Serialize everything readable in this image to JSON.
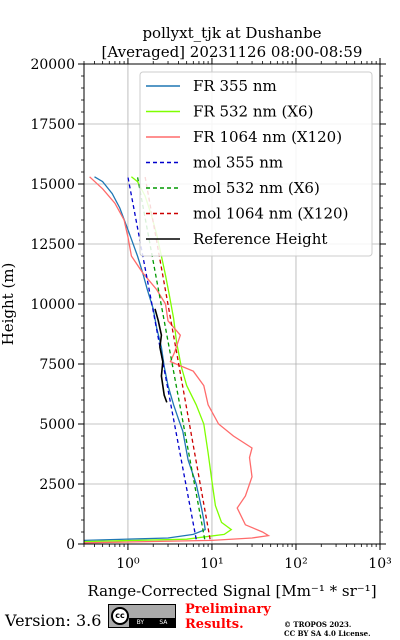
{
  "chart_data": {
    "type": "line",
    "title_line1": "pollyxt_tjk at Dushanbe",
    "title_line2": "[Averaged] 20231126 08:00-08:59",
    "xlabel": "Range-Corrected Signal [Mm⁻¹ * sr⁻¹]",
    "ylabel": "Height (m)",
    "x_scale": "log",
    "xlim": [
      0.3,
      1000
    ],
    "ylim": [
      0,
      20000
    ],
    "x_ticks": [
      1,
      10,
      100,
      1000
    ],
    "x_tick_labels": [
      "10⁰",
      "10¹",
      "10²",
      "10³"
    ],
    "y_ticks": [
      0,
      2500,
      5000,
      7500,
      10000,
      12500,
      15000,
      17500,
      20000
    ],
    "y_tick_labels": [
      "0",
      "2500",
      "5000",
      "7500",
      "10000",
      "12500",
      "15000",
      "17500",
      "20000"
    ],
    "grid": true,
    "legend_position": "top-right",
    "series": [
      {
        "name": "FR 355 nm",
        "color": "#1f77b4",
        "style": "solid",
        "points": [
          [
            0.3,
            150
          ],
          [
            3,
            250
          ],
          [
            6,
            400
          ],
          [
            8.3,
            600
          ],
          [
            8,
            1000
          ],
          [
            7.5,
            1500
          ],
          [
            6.5,
            2500
          ],
          [
            5.2,
            3500
          ],
          [
            4.5,
            4700
          ],
          [
            4.0,
            5200
          ],
          [
            3.5,
            5800
          ],
          [
            3.0,
            6600
          ],
          [
            2.7,
            7400
          ],
          [
            2.5,
            8200
          ],
          [
            2.2,
            9000
          ],
          [
            2.0,
            9800
          ],
          [
            1.7,
            10600
          ],
          [
            1.5,
            11300
          ],
          [
            1.3,
            12000
          ],
          [
            1.1,
            12700
          ],
          [
            0.95,
            13300
          ],
          [
            0.8,
            14000
          ],
          [
            0.65,
            14600
          ],
          [
            0.5,
            15100
          ],
          [
            0.4,
            15300
          ]
        ]
      },
      {
        "name": "FR 532 nm (X6)",
        "color": "#7fff00",
        "style": "solid",
        "points": [
          [
            0.3,
            100
          ],
          [
            5,
            200
          ],
          [
            14,
            400
          ],
          [
            17,
            600
          ],
          [
            13,
            900
          ],
          [
            11,
            1600
          ],
          [
            10,
            2600
          ],
          [
            9,
            3800
          ],
          [
            8,
            5000
          ],
          [
            6.5,
            5800
          ],
          [
            5,
            6600
          ],
          [
            4.3,
            7400
          ],
          [
            3.8,
            8400
          ],
          [
            3.5,
            9400
          ],
          [
            3.1,
            10400
          ],
          [
            2.8,
            11200
          ],
          [
            2.5,
            12000
          ],
          [
            2.2,
            12900
          ],
          [
            1.9,
            13700
          ],
          [
            1.6,
            14500
          ],
          [
            1.3,
            15100
          ],
          [
            1.1,
            15300
          ]
        ]
      },
      {
        "name": "FR 1064 nm (X120)",
        "color": "#ff6b6b",
        "style": "solid",
        "points": [
          [
            0.3,
            50
          ],
          [
            10,
            150
          ],
          [
            30,
            250
          ],
          [
            47,
            350
          ],
          [
            40,
            500
          ],
          [
            25,
            800
          ],
          [
            20,
            1500
          ],
          [
            25,
            2000
          ],
          [
            30,
            2800
          ],
          [
            28,
            3600
          ],
          [
            30,
            4000
          ],
          [
            18,
            4500
          ],
          [
            12,
            5000
          ],
          [
            9,
            5800
          ],
          [
            8,
            6600
          ],
          [
            6,
            7200
          ],
          [
            3.2,
            7600
          ],
          [
            3.6,
            8000
          ],
          [
            4.2,
            8700
          ],
          [
            3.0,
            9300
          ],
          [
            2.8,
            10000
          ],
          [
            2.2,
            10600
          ],
          [
            1.5,
            11300
          ],
          [
            1.1,
            12000
          ],
          [
            1.0,
            12800
          ],
          [
            0.9,
            13500
          ],
          [
            0.7,
            14200
          ],
          [
            0.5,
            14800
          ],
          [
            0.35,
            15300
          ]
        ]
      },
      {
        "name": "mol 355 nm",
        "color": "#0000cc",
        "style": "dashed",
        "points": [
          [
            6.5,
            200
          ],
          [
            1.0,
            15300
          ]
        ]
      },
      {
        "name": "mol 532 nm (X6)",
        "color": "#009900",
        "style": "dashed",
        "points": [
          [
            8.2,
            200
          ],
          [
            1.3,
            15300
          ]
        ]
      },
      {
        "name": "mol 1064 nm (X120)",
        "color": "#cc0000",
        "style": "dashed",
        "points": [
          [
            9.5,
            200
          ],
          [
            1.6,
            15300
          ]
        ]
      },
      {
        "name": "Reference Height",
        "color": "#000000",
        "style": "solid",
        "points": [
          [
            2.9,
            5900
          ],
          [
            2.7,
            6200
          ],
          [
            2.6,
            6600
          ],
          [
            2.5,
            7000
          ],
          [
            2.6,
            7600
          ],
          [
            2.4,
            8200
          ],
          [
            2.5,
            8700
          ],
          [
            2.3,
            9300
          ],
          [
            2.1,
            9800
          ]
        ]
      }
    ]
  },
  "footer": {
    "version": "Version: 3.6",
    "cc_badge": [
      "cc",
      "BY",
      "SA"
    ],
    "preliminary_line1": "Preliminary",
    "preliminary_line2": "Results.",
    "copyright_line1": "© TROPOS 2023.",
    "copyright_line2": "CC BY SA 4.0 License.",
    "preliminary_color": "#ff0000"
  }
}
